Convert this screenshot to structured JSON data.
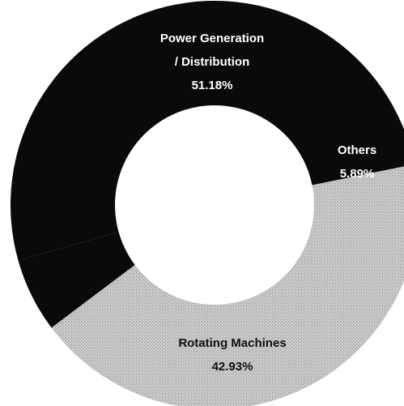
{
  "chart_data": {
    "type": "pie",
    "variant": "donut",
    "slices": [
      {
        "label_lines": [
          "Power Generation",
          "/ Distribution"
        ],
        "value": 51.18,
        "value_text": "51.18%",
        "color": "#0a0a0a",
        "label_color": "#ffffff"
      },
      {
        "label_lines": [
          "Others"
        ],
        "value": 5.89,
        "value_text": "5.89%",
        "color": "#0a0a0a",
        "label_color": "#ffffff"
      },
      {
        "label_lines": [
          "Rotating Machines"
        ],
        "value": 42.93,
        "value_text": "42.93%",
        "color": "#b9b9b9",
        "label_color": "#111111"
      }
    ],
    "legend": "none",
    "colors": {
      "background": "#ffffff",
      "hole": "#ffffff"
    }
  }
}
